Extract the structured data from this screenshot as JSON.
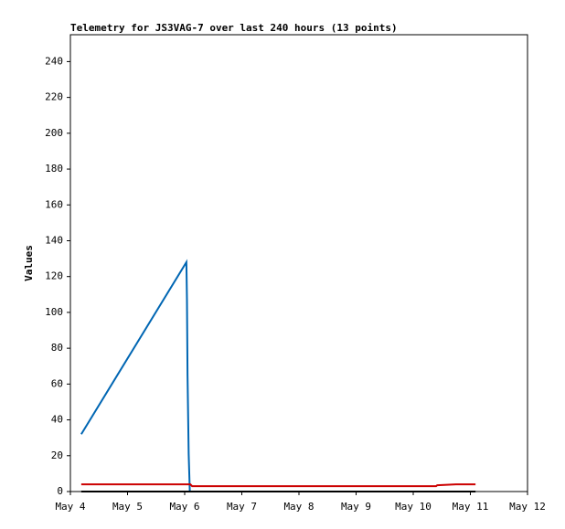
{
  "chart_data": {
    "type": "line",
    "title": "Telemetry for JS3VAG-7 over last 240 hours (13 points)",
    "y_label": "Values",
    "xlim": [
      0,
      8
    ],
    "xticks": [
      {
        "value": 0,
        "label": "May 4"
      },
      {
        "value": 1,
        "label": "May 5"
      },
      {
        "value": 2,
        "label": "May 6"
      },
      {
        "value": 3,
        "label": "May 7"
      },
      {
        "value": 4,
        "label": "May 8"
      },
      {
        "value": 5,
        "label": "May 9"
      },
      {
        "value": 6,
        "label": "May 10"
      },
      {
        "value": 7,
        "label": "May 11"
      },
      {
        "value": 8,
        "label": "May 12"
      }
    ],
    "ylim": [
      0,
      255
    ],
    "yticks": [
      0,
      20,
      40,
      60,
      80,
      100,
      120,
      140,
      160,
      180,
      200,
      220,
      240
    ],
    "series": [
      {
        "color": "#0066b3",
        "x": [
          0.19,
          2.03,
          2.04,
          2.05,
          2.07,
          2.09
        ],
        "values": [
          32,
          128,
          107,
          65,
          21,
          0
        ]
      },
      {
        "color": "#cc0000",
        "x": [
          0.19,
          2.1,
          2.13,
          6.4,
          6.42,
          6.75,
          7.09
        ],
        "values": [
          4,
          4,
          3,
          3,
          3.5,
          4,
          4
        ]
      },
      {
        "color": "#000000",
        "x": [
          0.19,
          7.09
        ],
        "values": [
          0,
          0
        ]
      }
    ]
  }
}
